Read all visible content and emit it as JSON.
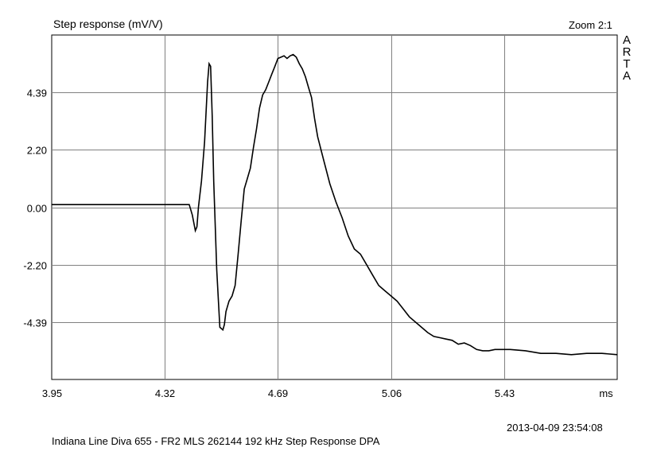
{
  "header": {
    "title": "Step response (mV/V)",
    "zoom": "Zoom 2:1",
    "brand_letters": [
      "A",
      "R",
      "T",
      "A"
    ]
  },
  "footer": {
    "timestamp": "2013-04-09   23:54:08",
    "caption": "Indiana Line Diva 655 - FR2 MLS 262144 192 kHz Step Response     DPA"
  },
  "chart_data": {
    "type": "line",
    "title": "Step response (mV/V)",
    "xunit": "ms",
    "xlim": [
      3.95,
      5.8
    ],
    "ylim": [
      -6.6,
      6.6
    ],
    "xticks": [
      "3.95",
      "4.32",
      "4.69",
      "5.06",
      "5.43"
    ],
    "xtick_values": [
      3.95,
      4.32,
      4.69,
      5.06,
      5.43
    ],
    "yticks": [
      "4.39",
      "2.20",
      "0.00",
      "-2.20",
      "-4.39"
    ],
    "ytick_values": [
      4.39,
      2.2,
      0.0,
      -2.2,
      -4.39
    ],
    "grid": true,
    "line_color": "#000000",
    "grid_color": "#808080",
    "series": [
      {
        "x": [
          3.95,
          4.4,
          4.41,
          4.42,
          4.425,
          4.43,
          4.44,
          4.45,
          4.46,
          4.465,
          4.47,
          4.475,
          4.48,
          4.49,
          4.5,
          4.51,
          4.515,
          4.52,
          4.53,
          4.54,
          4.55,
          4.56,
          4.57,
          4.58,
          4.59,
          4.6,
          4.61,
          4.62,
          4.63,
          4.64,
          4.65,
          4.66,
          4.67,
          4.68,
          4.69,
          4.7,
          4.71,
          4.72,
          4.73,
          4.74,
          4.75,
          4.76,
          4.77,
          4.78,
          4.79,
          4.8,
          4.81,
          4.82,
          4.84,
          4.86,
          4.88,
          4.9,
          4.92,
          4.94,
          4.96,
          4.98,
          5.0,
          5.02,
          5.04,
          5.06,
          5.08,
          5.1,
          5.12,
          5.15,
          5.18,
          5.2,
          5.22,
          5.24,
          5.26,
          5.28,
          5.3,
          5.32,
          5.34,
          5.36,
          5.38,
          5.4,
          5.45,
          5.5,
          5.55,
          5.6,
          5.65,
          5.7,
          5.75,
          5.8
        ],
        "y": [
          0.1,
          0.1,
          -0.3,
          -0.9,
          -0.75,
          0.0,
          1.0,
          2.5,
          4.8,
          5.5,
          5.4,
          3.5,
          1.0,
          -2.4,
          -4.6,
          -4.7,
          -4.5,
          -4.0,
          -3.6,
          -3.4,
          -3.0,
          -1.8,
          -0.5,
          0.7,
          1.1,
          1.5,
          2.3,
          3.0,
          3.8,
          4.3,
          4.5,
          4.8,
          5.1,
          5.4,
          5.7,
          5.75,
          5.8,
          5.7,
          5.8,
          5.85,
          5.75,
          5.5,
          5.3,
          5.0,
          4.6,
          4.2,
          3.4,
          2.7,
          1.8,
          0.9,
          0.2,
          -0.4,
          -1.1,
          -1.6,
          -1.8,
          -2.2,
          -2.6,
          -3.0,
          -3.2,
          -3.4,
          -3.6,
          -3.9,
          -4.2,
          -4.5,
          -4.8,
          -4.95,
          -5.0,
          -5.05,
          -5.1,
          -5.25,
          -5.2,
          -5.3,
          -5.45,
          -5.5,
          -5.5,
          -5.45,
          -5.45,
          -5.5,
          -5.6,
          -5.6,
          -5.65,
          -5.6,
          -5.6,
          -5.65
        ]
      }
    ]
  }
}
